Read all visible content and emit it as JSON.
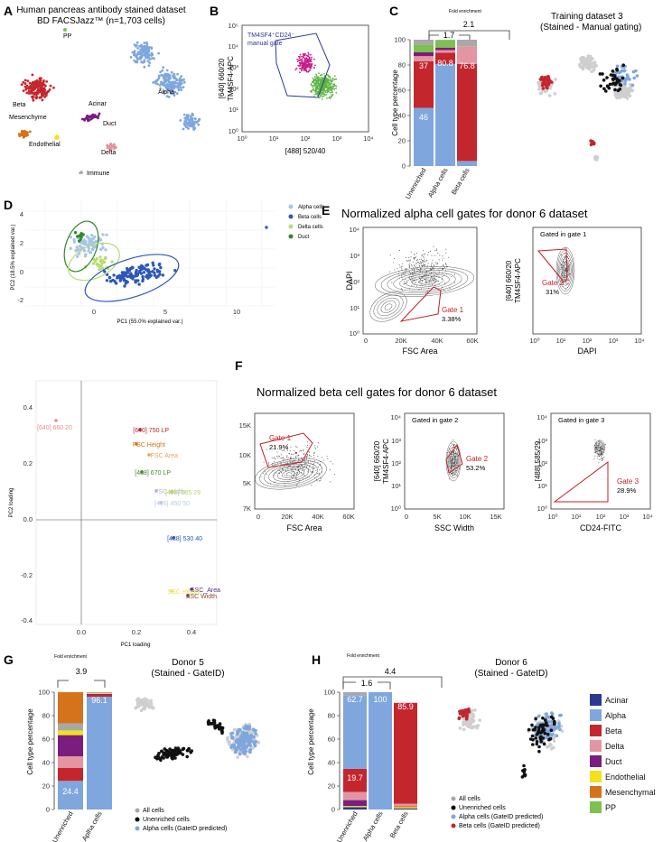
{
  "colors": {
    "alpha": "#7fa7de",
    "beta": "#c4262e",
    "delta": "#e395a2",
    "duct": "#7a1d7e",
    "acinar": "#2b3990",
    "endothelial": "#f4e01d",
    "mesenchymal": "#d5731d",
    "pp": "#7cc24f",
    "immune": "#a8a8a8",
    "gate": "#c41e2a",
    "pca_alpha": "#a9c5e6",
    "pca_beta": "#2d57b8",
    "pca_delta": "#b9dc74",
    "pca_duct": "#2f8a2f"
  },
  "panelA": {
    "label": "A",
    "title1": "Human pancreas antibody stained dataset",
    "title2": "BD FACSJazz™ (n=1,703 cells)",
    "clusters": [
      "PP",
      "Alpha",
      "Beta",
      "Acinar",
      "Mesenchyme",
      "Duct",
      "Endothelial",
      "Delta",
      "Immune"
    ]
  },
  "panelB": {
    "label": "B",
    "gate_label_1": "TM4SF4⁺CD24⁻",
    "gate_label_2": "manual gate",
    "y_axis_1": "[640] 660/20",
    "y_axis_2": "TM4SF4-APC",
    "x_axis": "[488] 520/40",
    "ticks_x": [
      "10⁰",
      "10¹",
      "10²",
      "10³",
      "10⁴"
    ],
    "ticks_y": [
      "10⁰",
      "10¹",
      "10²",
      "10³",
      "10⁴",
      "10⁵"
    ]
  },
  "panelC": {
    "label": "C",
    "fold_title": "Fold enrichment",
    "fold_outer": "2.1",
    "fold_inner": "1.7",
    "y_axis": "Cell type percentage",
    "y_ticks": [
      "0",
      "20",
      "40",
      "60",
      "80",
      "100"
    ],
    "right_title1": "Training dataset 3",
    "right_title2": "(Stained - Manual gating)"
  },
  "panelD": {
    "label": "D",
    "legend": [
      "Alpha cells",
      "Beta cells",
      "Delta cells",
      "Duct"
    ],
    "x_axis": "PC1 (55.0% explained var.)",
    "y_axis": "PC2 (18.5% explained var.)",
    "x_ticks": [
      "0",
      "5",
      "10"
    ],
    "y_ticks": [
      "4",
      "2",
      "0",
      "-2"
    ],
    "loading_x_axis": "PC1 loading",
    "loading_y_axis": "PC2 loading",
    "loading_x_ticks": [
      "0.0",
      "0.2",
      "0.4"
    ],
    "loading_y_ticks": [
      "0.4",
      "0.2",
      "0.0",
      "-0.2",
      "-0.4"
    ],
    "loadings": [
      {
        "name": "[640] 660 20",
        "color": "#e3908f"
      },
      {
        "name": "[640] 750 LP",
        "color": "#c41e2a"
      },
      {
        "name": "FSC Height",
        "color": "#d5731d"
      },
      {
        "name": "FSC Area",
        "color": "#e8a45a"
      },
      {
        "name": "[488] 670 LP",
        "color": "#3e8d2a"
      },
      {
        "name": "FSC Width",
        "color": "#b9b4d8"
      },
      {
        "name": "[488] 585 29",
        "color": "#b6d56a"
      },
      {
        "name": "[405] 450 50",
        "color": "#b9c8e6"
      },
      {
        "name": "[488] 530 40",
        "color": "#2d57b8"
      },
      {
        "name": "SSC_Area",
        "color": "#4b2a8a"
      },
      {
        "name": "SSC Height",
        "color": "#e8e05a"
      },
      {
        "name": "SSC Width",
        "color": "#8a4a2a"
      }
    ]
  },
  "panelE": {
    "label": "E",
    "title": "Normalized alpha cell gates for donor 6 dataset",
    "plot1_yaxis": "DAPI",
    "plot1_xaxis": "FSC Area",
    "plot1_xticks": [
      "0",
      "20K",
      "40K",
      "60K"
    ],
    "plot1_yticks": [
      "10⁰",
      "10¹",
      "10²",
      "10³",
      "10⁴"
    ],
    "gate1_name": "Gate 1",
    "gate1_pct": "3.38%",
    "plot2_title": "Gated in gate 1",
    "plot2_yaxis_1": "[640] 660/20",
    "plot2_yaxis_2": "TM4SF4-APC",
    "plot2_xaxis": "DAPI",
    "plot2_xticks": [
      "10⁰",
      "10¹",
      "10²",
      "10³",
      "10⁴"
    ],
    "gate2_name": "Gate 2",
    "gate2_pct": "31%"
  },
  "panelF": {
    "label": "F",
    "title": "Normalized beta cell gates for donor 6 dataset",
    "plot1_xaxis": "FSC Area",
    "plot1_xticks": [
      "0",
      "20K",
      "40K",
      "60K"
    ],
    "plot1_yticks": [
      "15K",
      "10K",
      "5K",
      "7K"
    ],
    "gate1_name": "Gate 1",
    "gate1_pct": "21.9%",
    "plot2_title": "Gated in gate 2",
    "plot2_yaxis_1": "[640] 660/20",
    "plot2_yaxis_2": "TM4SF4-APC",
    "plot2_xaxis": "SSC Width",
    "plot2_xticks": [
      "0",
      "5K",
      "10K",
      "15K"
    ],
    "gate2_name": "Gate 2",
    "gate2_pct": "53.2%",
    "plot3_title": "Gated in gate 3",
    "plot3_yaxis": "[488] 585/29",
    "plot3_xaxis": "CD24-FITC",
    "plot3_xticks": [
      "10⁰",
      "10¹",
      "10²",
      "10³",
      "10⁴"
    ],
    "gate3_name": "Gate 3",
    "gate3_pct": "28.9%",
    "yticks_log": [
      "10⁰",
      "10¹",
      "10²",
      "10³",
      "10⁴"
    ]
  },
  "panelG": {
    "label": "G",
    "fold_title": "Fold enrichment",
    "fold_value": "3.9",
    "y_axis": "Cell type percentage",
    "title1": "Donor 5",
    "title2": "(Stained - GateID)",
    "legend": [
      "All cells",
      "Unenriched cells",
      "Alpha cells (GateID predicted)"
    ]
  },
  "panelH": {
    "label": "H",
    "fold_title": "Fold enrichment",
    "fold_outer": "4.4",
    "fold_inner": "1.6",
    "y_axis": "Cell type percentage",
    "title1": "Donor 6",
    "title2": "(Stained - GateID)",
    "legend": [
      "All cells",
      "Unenriched cells",
      "Alpha cells (GateID predicted)",
      "Beta cells (GateID predicted)"
    ],
    "celltypes": [
      "Acinar",
      "Alpha",
      "Beta",
      "Delta",
      "Duct",
      "Endothelial",
      "Mesenchymal",
      "PP"
    ]
  },
  "chart_data": [
    {
      "type": "bar",
      "panel": "C",
      "stacked": true,
      "categories": [
        "Unenriched",
        "Alpha cells",
        "Beta cells"
      ],
      "ylabel": "Cell type percentage",
      "ylim": [
        0,
        100
      ],
      "series": [
        {
          "name": "Acinar",
          "color": "#2b3990",
          "values": [
            0,
            0,
            0
          ]
        },
        {
          "name": "Alpha",
          "color": "#7fa7de",
          "values": [
            46,
            80.8,
            4
          ]
        },
        {
          "name": "Beta",
          "color": "#c4262e",
          "values": [
            37,
            9,
            76.8
          ]
        },
        {
          "name": "Delta",
          "color": "#e395a2",
          "values": [
            4,
            2,
            14
          ]
        },
        {
          "name": "Duct",
          "color": "#7a1d7e",
          "values": [
            3,
            2,
            0
          ]
        },
        {
          "name": "Endothelial",
          "color": "#f4e01d",
          "values": [
            0,
            0,
            0
          ]
        },
        {
          "name": "Mesenchymal",
          "color": "#d5731d",
          "values": [
            0,
            0,
            0
          ]
        },
        {
          "name": "PP",
          "color": "#7cc24f",
          "values": [
            6,
            6,
            0
          ]
        },
        {
          "name": "Immune",
          "color": "#a8a8a8",
          "values": [
            4,
            0.2,
            5.2
          ]
        }
      ],
      "data_labels": [
        "46",
        "37",
        "80.8",
        "76.8"
      ]
    },
    {
      "type": "bar",
      "panel": "G",
      "stacked": true,
      "categories": [
        "Unenriched",
        "Aplha cells"
      ],
      "ylabel": "Cell type percentage",
      "ylim": [
        0,
        100
      ],
      "series": [
        {
          "name": "Alpha",
          "color": "#7fa7de",
          "values": [
            24.4,
            96.1
          ]
        },
        {
          "name": "Beta",
          "color": "#c4262e",
          "values": [
            11,
            2
          ]
        },
        {
          "name": "Delta",
          "color": "#e395a2",
          "values": [
            10,
            0
          ]
        },
        {
          "name": "Duct",
          "color": "#7a1d7e",
          "values": [
            18,
            0.5
          ]
        },
        {
          "name": "Endothelial",
          "color": "#f4e01d",
          "values": [
            4,
            0.5
          ]
        },
        {
          "name": "Immune",
          "color": "#a8a8a8",
          "values": [
            6,
            0.9
          ]
        },
        {
          "name": "Mesenchymal",
          "color": "#d5731d",
          "values": [
            26.6,
            0
          ]
        }
      ],
      "data_labels": [
        "24.4",
        "96.1"
      ]
    },
    {
      "type": "bar",
      "panel": "H",
      "stacked": true,
      "categories": [
        "Unenriched",
        "Alpha cells",
        "Beta cells"
      ],
      "ylabel": "Cell type percentage",
      "ylim": [
        0,
        100
      ],
      "series": [
        {
          "name": "Acinar",
          "color": "#2b3990",
          "values": [
            2,
            0,
            1
          ]
        },
        {
          "name": "Endothelial",
          "color": "#f4e01d",
          "values": [
            1,
            0,
            1
          ]
        },
        {
          "name": "Mesenchymal",
          "color": "#d5731d",
          "values": [
            0,
            0,
            1
          ]
        },
        {
          "name": "Duct",
          "color": "#7a1d7e",
          "values": [
            5,
            0,
            0
          ]
        },
        {
          "name": "Delta",
          "color": "#e395a2",
          "values": [
            7,
            0,
            2
          ]
        },
        {
          "name": "Beta",
          "color": "#c4262e",
          "values": [
            19.7,
            0,
            85.9
          ]
        },
        {
          "name": "Alpha",
          "color": "#7fa7de",
          "values": [
            62.7,
            100,
            0
          ]
        },
        {
          "name": "Immune",
          "color": "#a8a8a8",
          "values": [
            2.6,
            0,
            0
          ]
        }
      ],
      "data_labels": [
        "62.7",
        "19.7",
        "100",
        "85.9"
      ]
    }
  ]
}
